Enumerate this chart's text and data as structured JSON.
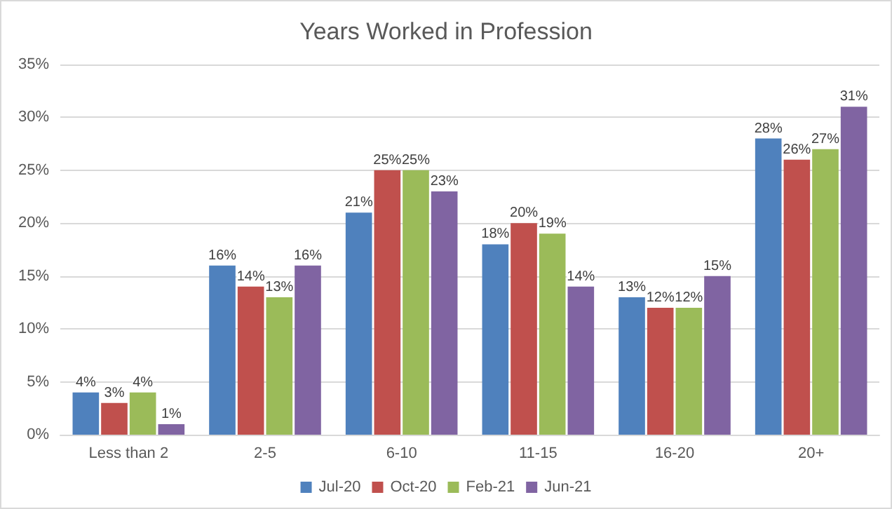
{
  "chart_data": {
    "type": "bar",
    "title": "Years Worked in Profession",
    "categories": [
      "Less than 2",
      "2-5",
      "6-10",
      "11-15",
      "16-20",
      "20+"
    ],
    "series": [
      {
        "name": "Jul-20",
        "color": "#4f81bd",
        "values": [
          4,
          16,
          21,
          18,
          13,
          28
        ],
        "value_labels": [
          "4%",
          "16%",
          "21%",
          "18%",
          "13%",
          "28%"
        ]
      },
      {
        "name": "Oct-20",
        "color": "#c0504d",
        "values": [
          3,
          14,
          25,
          20,
          12,
          26
        ],
        "value_labels": [
          "3%",
          "14%",
          "25%",
          "20%",
          "12%",
          "26%"
        ]
      },
      {
        "name": "Feb-21",
        "color": "#9bbb59",
        "values": [
          4,
          13,
          25,
          19,
          12,
          27
        ],
        "value_labels": [
          "4%",
          "13%",
          "25%",
          "19%",
          "12%",
          "27%"
        ]
      },
      {
        "name": "Jun-21",
        "color": "#8064a2",
        "values": [
          1,
          16,
          23,
          14,
          15,
          31
        ],
        "value_labels": [
          "1%",
          "16%",
          "23%",
          "14%",
          "15%",
          "31%"
        ]
      }
    ],
    "ylim": [
      0,
      35
    ],
    "yticks": [
      {
        "value": 0,
        "label": "0%"
      },
      {
        "value": 5,
        "label": "5%"
      },
      {
        "value": 10,
        "label": "10%"
      },
      {
        "value": 15,
        "label": "15%"
      },
      {
        "value": 20,
        "label": "20%"
      },
      {
        "value": 25,
        "label": "25%"
      },
      {
        "value": 30,
        "label": "30%"
      },
      {
        "value": 35,
        "label": "35%"
      }
    ],
    "grid": "y",
    "legend": "bottom"
  }
}
